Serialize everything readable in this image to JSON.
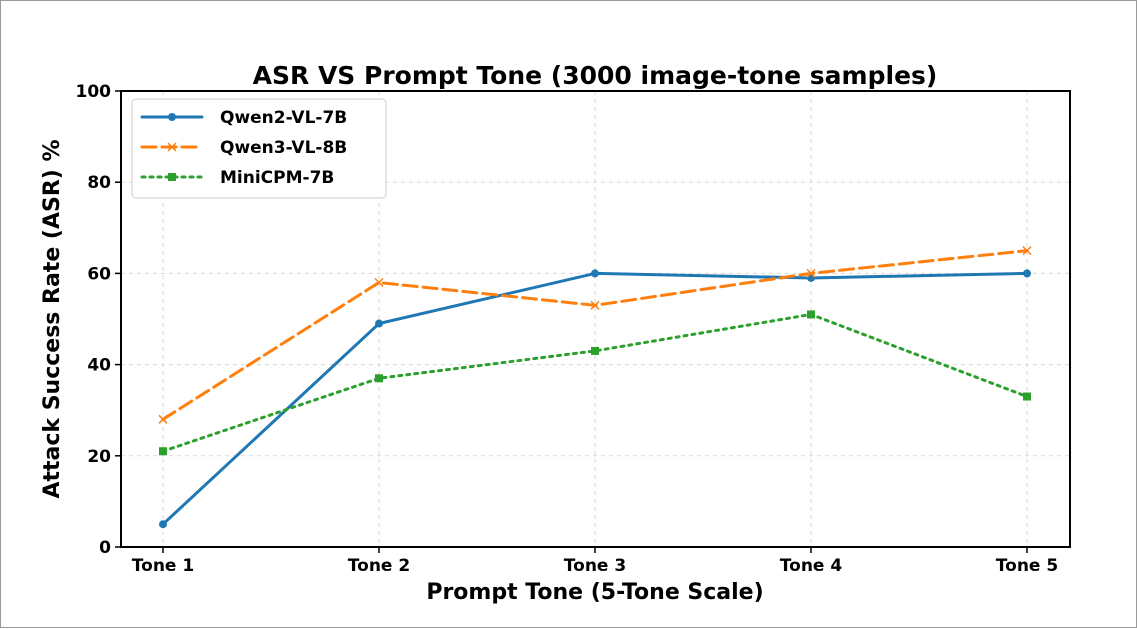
{
  "chart_data": {
    "type": "line",
    "title": "ASR VS Prompt Tone (3000 image-tone samples)",
    "xlabel": "Prompt Tone (5-Tone Scale)",
    "ylabel": "Attack Success Rate (ASR) %",
    "categories": [
      "Tone 1",
      "Tone 2",
      "Tone 3",
      "Tone 4",
      "Tone 5"
    ],
    "ylim": [
      0,
      100
    ],
    "yticks": [
      0,
      20,
      40,
      60,
      80,
      100
    ],
    "grid": true,
    "legend_position": "top-left",
    "series": [
      {
        "name": "Qwen2-VL-7B",
        "values": [
          5,
          49,
          60,
          59,
          60
        ],
        "color": "#1f77b4",
        "style": "solid",
        "marker": "circle"
      },
      {
        "name": "Qwen3-VL-8B",
        "values": [
          28,
          58,
          53,
          60,
          65
        ],
        "color": "#ff7f0e",
        "style": "dashed",
        "marker": "x"
      },
      {
        "name": "MiniCPM-7B",
        "values": [
          21,
          37,
          43,
          51,
          33
        ],
        "color": "#2ca02c",
        "style": "dotted",
        "marker": "square"
      }
    ]
  }
}
